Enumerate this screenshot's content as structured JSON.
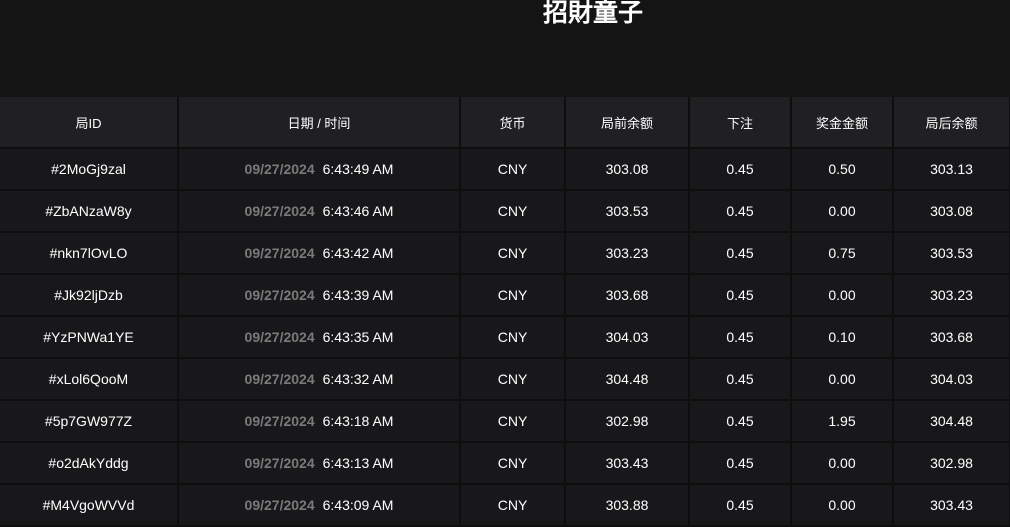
{
  "title": "招財童子",
  "columns": [
    "局ID",
    "日期 / 时间",
    "货币",
    "局前余额",
    "下注",
    "奖金金额",
    "局后余额"
  ],
  "rows": [
    {
      "id": "#2MoGj9zal",
      "date": "09/27/2024",
      "time": "6:43:49 AM",
      "currency": "CNY",
      "before": "303.08",
      "bet": "0.45",
      "win": "0.50",
      "after": "303.13"
    },
    {
      "id": "#ZbANzaW8y",
      "date": "09/27/2024",
      "time": "6:43:46 AM",
      "currency": "CNY",
      "before": "303.53",
      "bet": "0.45",
      "win": "0.00",
      "after": "303.08"
    },
    {
      "id": "#nkn7lOvLO",
      "date": "09/27/2024",
      "time": "6:43:42 AM",
      "currency": "CNY",
      "before": "303.23",
      "bet": "0.45",
      "win": "0.75",
      "after": "303.53"
    },
    {
      "id": "#Jk92ljDzb",
      "date": "09/27/2024",
      "time": "6:43:39 AM",
      "currency": "CNY",
      "before": "303.68",
      "bet": "0.45",
      "win": "0.00",
      "after": "303.23"
    },
    {
      "id": "#YzPNWa1YE",
      "date": "09/27/2024",
      "time": "6:43:35 AM",
      "currency": "CNY",
      "before": "304.03",
      "bet": "0.45",
      "win": "0.10",
      "after": "303.68"
    },
    {
      "id": "#xLol6QooM",
      "date": "09/27/2024",
      "time": "6:43:32 AM",
      "currency": "CNY",
      "before": "304.48",
      "bet": "0.45",
      "win": "0.00",
      "after": "304.03"
    },
    {
      "id": "#5p7GW977Z",
      "date": "09/27/2024",
      "time": "6:43:18 AM",
      "currency": "CNY",
      "before": "302.98",
      "bet": "0.45",
      "win": "1.95",
      "after": "304.48"
    },
    {
      "id": "#o2dAkYddg",
      "date": "09/27/2024",
      "time": "6:43:13 AM",
      "currency": "CNY",
      "before": "303.43",
      "bet": "0.45",
      "win": "0.00",
      "after": "302.98"
    },
    {
      "id": "#M4VgoWVVd",
      "date": "09/27/2024",
      "time": "6:43:09 AM",
      "currency": "CNY",
      "before": "303.88",
      "bet": "0.45",
      "win": "0.00",
      "after": "303.43"
    }
  ]
}
